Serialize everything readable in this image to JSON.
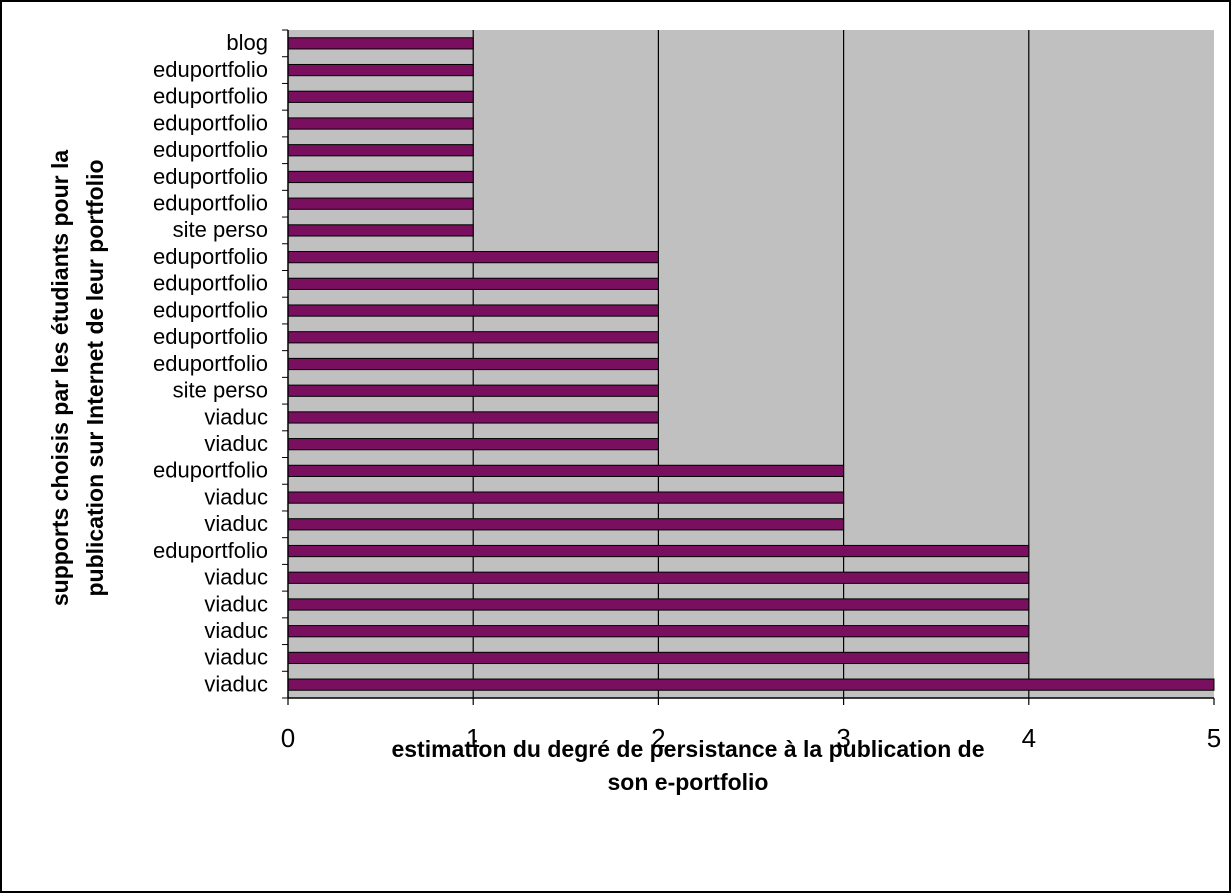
{
  "chart_data": {
    "type": "bar",
    "orientation": "horizontal",
    "categories": [
      "blog",
      "eduportfolio",
      "eduportfolio",
      "eduportfolio",
      "eduportfolio",
      "eduportfolio",
      "eduportfolio",
      "site perso",
      "eduportfolio",
      "eduportfolio",
      "eduportfolio",
      "eduportfolio",
      "eduportfolio",
      "site perso",
      "viaduc",
      "viaduc",
      "eduportfolio",
      "viaduc",
      "viaduc",
      "eduportfolio",
      "viaduc",
      "viaduc",
      "viaduc",
      "viaduc",
      "viaduc"
    ],
    "values": [
      1,
      1,
      1,
      1,
      1,
      1,
      1,
      1,
      2,
      2,
      2,
      2,
      2,
      2,
      2,
      2,
      3,
      3,
      3,
      4,
      4,
      4,
      4,
      4,
      5
    ],
    "xlabel_lines": [
      "estimation du degré de persistance à la publication de",
      "son e-portfolio"
    ],
    "ylabel_lines": [
      "supports choisis par les étudiants pour la",
      "publication sur Internet de leur portfolio"
    ],
    "xlim": [
      0,
      5
    ],
    "xticks": [
      "0",
      "1",
      "2",
      "3",
      "4",
      "5"
    ],
    "grid": "vertical",
    "legend": "none",
    "colors": {
      "bar": "#7a0f5f",
      "plot_background": "#c0c0c0",
      "gridline": "#000000"
    }
  }
}
